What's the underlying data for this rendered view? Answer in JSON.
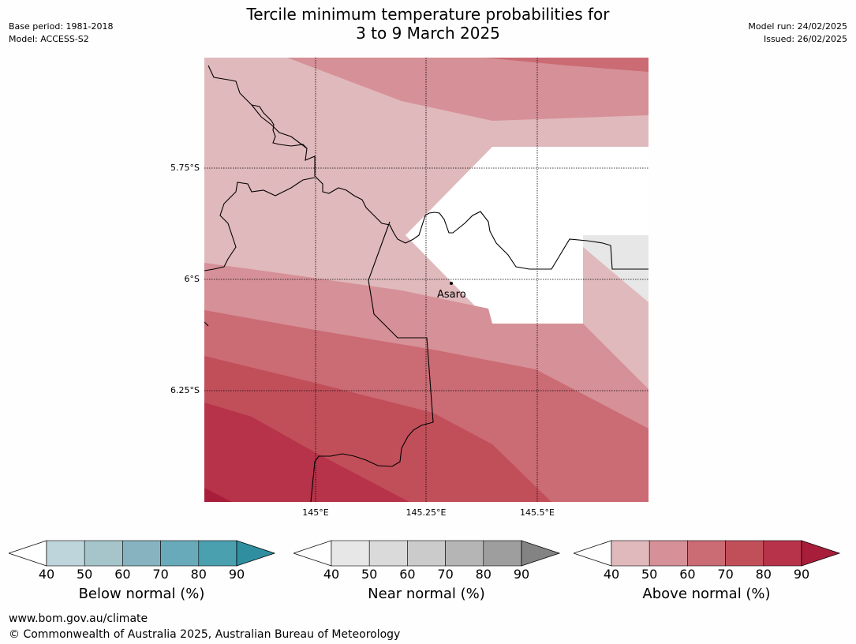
{
  "title_line1": "Tercile minimum temperature probabilities for",
  "title_line2": "3 to 9 March 2025",
  "meta": {
    "base_period": "Base period: 1981-2018",
    "model": "Model: ACCESS-S2",
    "model_run": "Model run: 24/02/2025",
    "issued": "Issued: 26/02/2025"
  },
  "map": {
    "lat_labels": [
      "5.75°S",
      "6°S",
      "6.25°S"
    ],
    "lon_labels": [
      "145°E",
      "145.25°E",
      "145.5°E"
    ],
    "place_label": "Asaro"
  },
  "legends": [
    {
      "title": "Below normal (%)",
      "ticks": [
        "40",
        "50",
        "60",
        "70",
        "80",
        "90"
      ],
      "colors": [
        "#ffffff",
        "#bfd5dc",
        "#a6c5cb",
        "#87b3c0",
        "#69aaba",
        "#4aa0af",
        "#2f8fa0"
      ]
    },
    {
      "title": "Near normal (%)",
      "ticks": [
        "40",
        "50",
        "60",
        "70",
        "80",
        "90"
      ],
      "colors": [
        "#ffffff",
        "#e7e7e7",
        "#dadada",
        "#cbcbcb",
        "#b5b5b5",
        "#9e9e9e",
        "#838383"
      ]
    },
    {
      "title": "Above normal (%)",
      "ticks": [
        "40",
        "50",
        "60",
        "70",
        "80",
        "90"
      ],
      "colors": [
        "#ffffff",
        "#e0b9bc",
        "#d69097",
        "#cb6b74",
        "#c14f5a",
        "#b7334a",
        "#a81e3a"
      ]
    }
  ],
  "footer": {
    "url": "www.bom.gov.au/climate",
    "copyright": "© Commonwealth of Australia 2025, Australian Bureau of Meteorology"
  }
}
